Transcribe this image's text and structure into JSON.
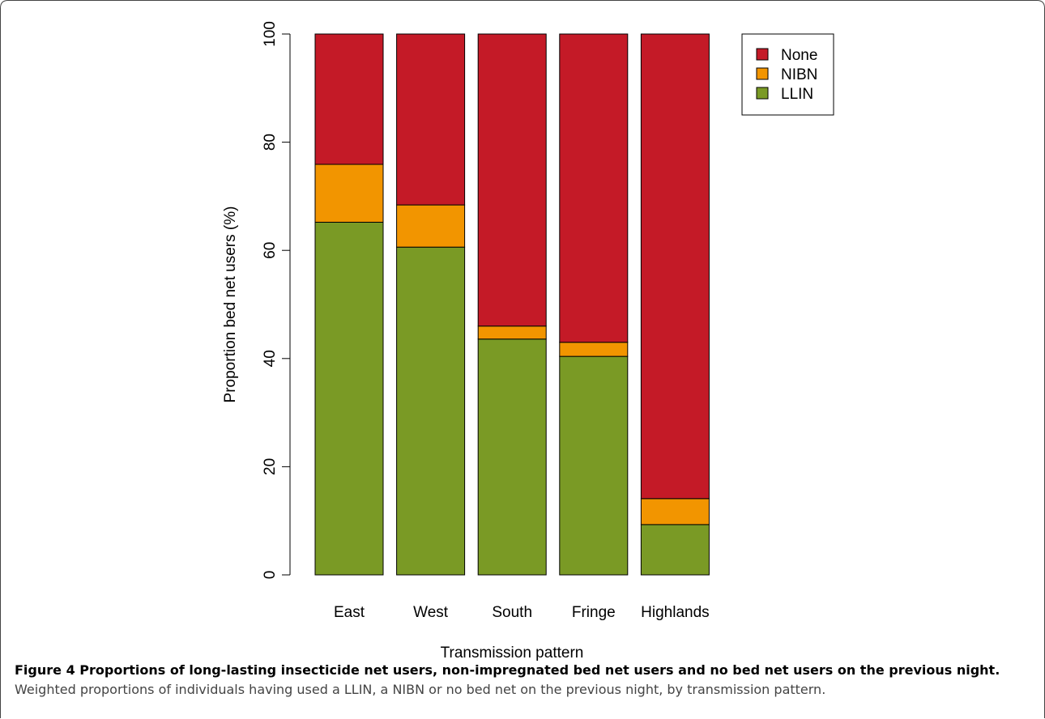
{
  "chart_data": {
    "type": "stacked_bar",
    "categories": [
      "East",
      "West",
      "South",
      "Fringe",
      "Highlands"
    ],
    "series": [
      {
        "name": "LLIN",
        "color": "#7a9a25",
        "values": [
          65.2,
          60.6,
          43.6,
          40.4,
          9.3
        ]
      },
      {
        "name": "NIBN",
        "color": "#f29500",
        "values": [
          10.7,
          7.8,
          2.4,
          2.6,
          4.8
        ]
      },
      {
        "name": "None",
        "color": "#c41a27",
        "values": [
          24.1,
          31.6,
          54.0,
          57.0,
          85.9
        ]
      }
    ],
    "ylim": [
      0,
      100
    ],
    "yticks": [
      0,
      20,
      40,
      60,
      80,
      100
    ],
    "x_label": "Transmission pattern",
    "y_label": "Proportion bed net users (%)",
    "legend": "top-right"
  },
  "caption": {
    "title": "Figure 4 Proportions of long-lasting insecticide net users, non-impregnated bed net users and no bed net users on the previous night.",
    "text": "Weighted proportions of individuals having used a LLIN, a NIBN or no bed net on the previous night, by transmission pattern."
  }
}
